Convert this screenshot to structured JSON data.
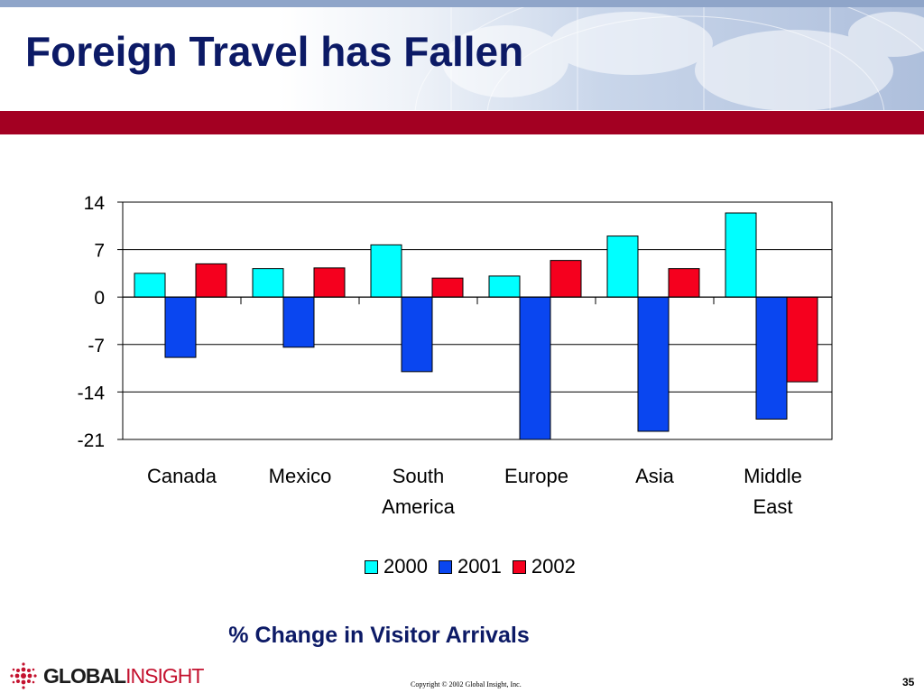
{
  "slide": {
    "title": "Foreign Travel has Fallen",
    "caption": "% Change in Visitor Arrivals",
    "logo": {
      "text_bold": "GLOBAL",
      "text_accent": "INSIGHT"
    },
    "copyright": "Copyright © 2002 Global Insight, Inc.",
    "page_number": "35",
    "colors": {
      "title": "#0c1a66",
      "band": "#a30022"
    }
  },
  "chart_data": {
    "type": "bar",
    "categories": [
      [
        "Canada"
      ],
      [
        "Mexico"
      ],
      [
        "South",
        "America"
      ],
      [
        "Europe"
      ],
      [
        "Asia"
      ],
      [
        "Middle",
        "East"
      ]
    ],
    "series": [
      {
        "name": "2000",
        "color": "#00ffff",
        "values": [
          3.5,
          4.2,
          7.7,
          3.1,
          9.0,
          12.4
        ]
      },
      {
        "name": "2001",
        "color": "#0a46f0",
        "values": [
          -8.9,
          -7.4,
          -11.0,
          -21.0,
          -19.8,
          -18.0
        ]
      },
      {
        "name": "2002",
        "color": "#f5001e",
        "values": [
          4.9,
          4.3,
          2.8,
          5.4,
          4.2,
          -12.5
        ]
      }
    ],
    "yticks": [
      14,
      7,
      0,
      -7,
      -14,
      -21
    ],
    "ylim": [
      -21,
      14
    ],
    "grid": true,
    "legend_position": "bottom"
  }
}
